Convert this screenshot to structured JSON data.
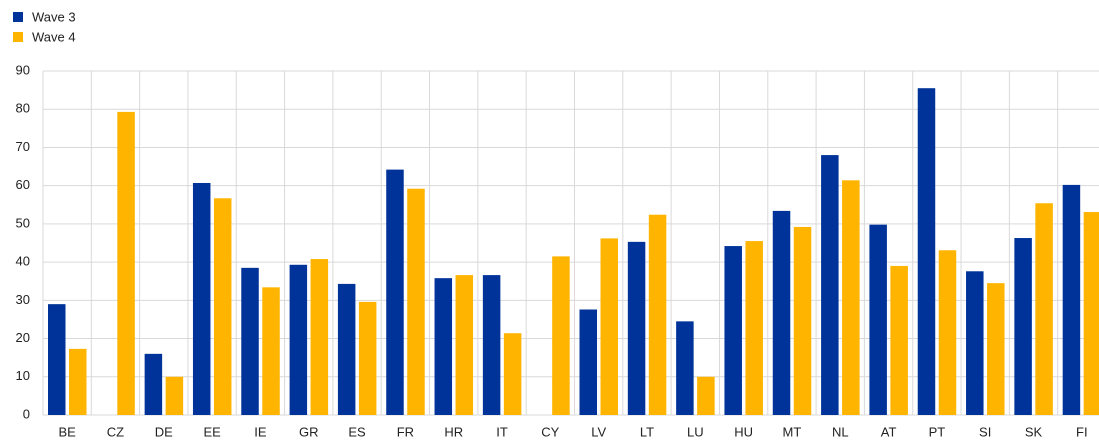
{
  "chart_data": {
    "type": "bar",
    "categories": [
      "BE",
      "CZ",
      "DE",
      "EE",
      "IE",
      "GR",
      "ES",
      "FR",
      "HR",
      "IT",
      "CY",
      "LV",
      "LT",
      "LU",
      "HU",
      "MT",
      "NL",
      "AT",
      "PT",
      "SI",
      "SK",
      "FI"
    ],
    "series": [
      {
        "name": "Wave 3",
        "color": "#003399",
        "values": [
          29,
          null,
          16,
          60.7,
          38.5,
          39.3,
          34.3,
          64.2,
          35.8,
          36.6,
          null,
          27.6,
          45.3,
          24.5,
          44.2,
          53.4,
          68,
          49.8,
          85.5,
          37.6,
          46.3,
          60.2
        ]
      },
      {
        "name": "Wave 4",
        "color": "#ffb400",
        "values": [
          17.3,
          79.3,
          10,
          56.7,
          33.4,
          40.8,
          29.6,
          59.2,
          36.6,
          21.4,
          41.5,
          46.2,
          52.4,
          10,
          45.5,
          49.2,
          61.4,
          39,
          43.1,
          34.5,
          55.4,
          53.1
        ]
      }
    ],
    "ylim": [
      0,
      90
    ],
    "yticks": [
      0,
      10,
      20,
      30,
      40,
      50,
      60,
      70,
      80,
      90
    ],
    "grid": true,
    "legend": "top-left"
  }
}
